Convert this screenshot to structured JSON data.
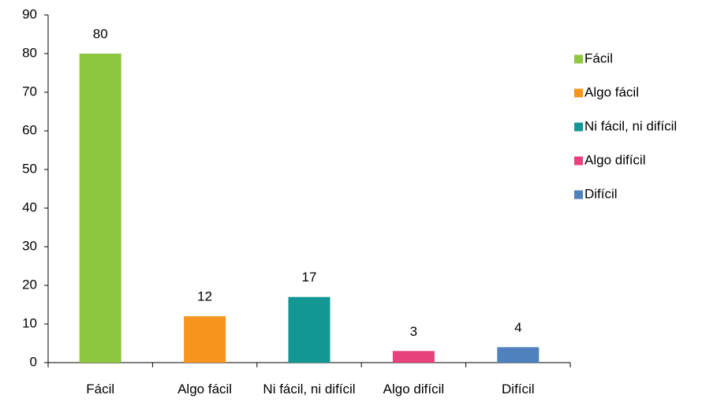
{
  "chart_data": {
    "type": "bar",
    "categories": [
      "Fácil",
      "Algo fácil",
      "Ni fácil, ni difícil",
      "Algo difícil",
      "Difícil"
    ],
    "values": [
      80,
      12,
      17,
      3,
      4
    ],
    "colors": [
      "#8dc63f",
      "#f7941d",
      "#129795",
      "#e8417e",
      "#4f81bd"
    ],
    "ylim": [
      0,
      90
    ],
    "yticks": [
      0,
      10,
      20,
      30,
      40,
      50,
      60,
      70,
      80,
      90
    ],
    "grid": false,
    "legend": "right"
  }
}
